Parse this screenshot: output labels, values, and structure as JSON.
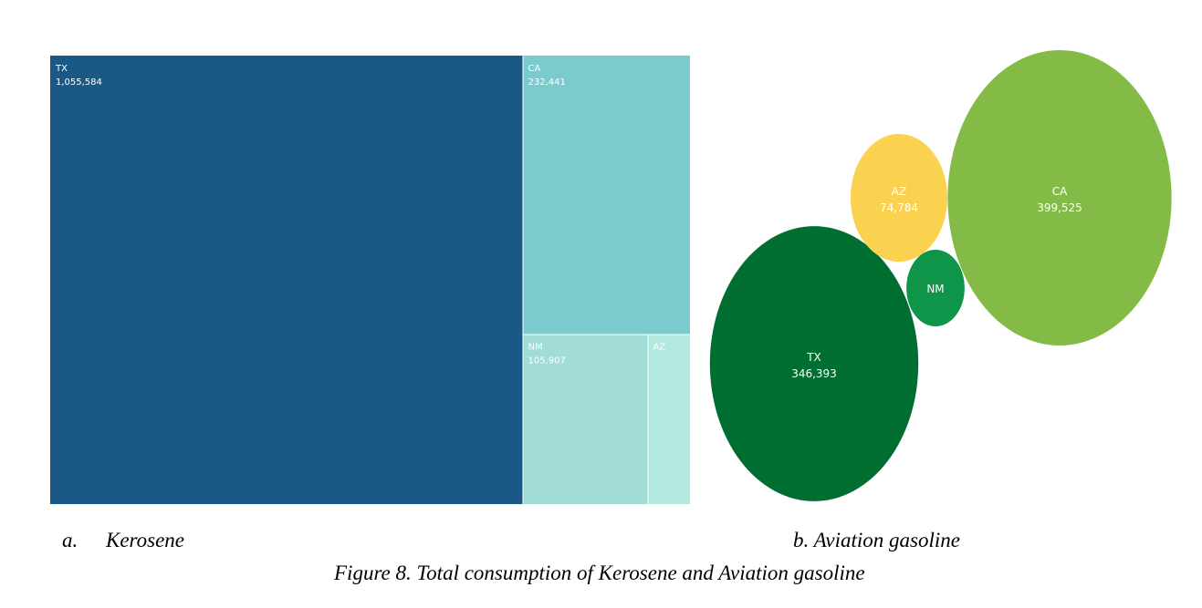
{
  "chart_data": [
    {
      "type": "treemap",
      "caption_letter": "a.",
      "caption_name": "Kerosene",
      "label_color": "#ffffff",
      "items": [
        {
          "name": "TX",
          "value": 1055584,
          "value_label": "1,055,584",
          "color": "#1a5886"
        },
        {
          "name": "CA",
          "value": 232441,
          "value_label": "232,441",
          "color": "#79cbcd"
        },
        {
          "name": "NM",
          "value": 105907,
          "value_label": "105,907",
          "color": "#a1ddd6"
        },
        {
          "name": "AZ",
          "value": 36000,
          "value_label": "",
          "color": "#b2e8dd"
        }
      ]
    },
    {
      "type": "packed-bubble",
      "caption": "b. Aviation gasoline",
      "label_color": "#ffffff",
      "items": [
        {
          "name": "CA",
          "value": 399525,
          "value_label": "399,525",
          "color": "#84bb47"
        },
        {
          "name": "TX",
          "value": 346393,
          "value_label": "346,393",
          "color": "#006e31"
        },
        {
          "name": "AZ",
          "value": 74784,
          "value_label": "74,784",
          "color": "#fbd250"
        },
        {
          "name": "NM",
          "value": 27000,
          "value_label": "",
          "color": "#0f9549"
        }
      ]
    }
  ],
  "figure_title": "Figure 8. Total consumption of Kerosene and Aviation gasoline"
}
